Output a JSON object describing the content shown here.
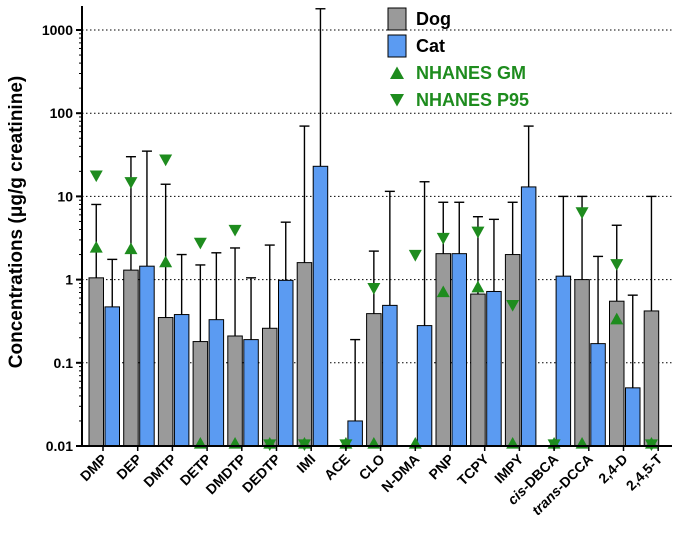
{
  "chart_data": {
    "type": "bar",
    "ylabel": "Concentrations (μg/g creatinine)",
    "yscale": "log",
    "ylim": [
      0.01,
      2000
    ],
    "yticks": [
      {
        "value": 0.01,
        "label": "0.01"
      },
      {
        "value": 0.1,
        "label": "0.1"
      },
      {
        "value": 1,
        "label": "1"
      },
      {
        "value": 10,
        "label": "10"
      },
      {
        "value": 100,
        "label": "100"
      },
      {
        "value": 1000,
        "label": "1000"
      }
    ],
    "grid": true,
    "legend_position": "top-center",
    "categories": [
      {
        "prefix": "",
        "text": "DMP",
        "italic": ""
      },
      {
        "prefix": "",
        "text": "DEP",
        "italic": ""
      },
      {
        "prefix": "",
        "text": "DMTP",
        "italic": ""
      },
      {
        "prefix": "",
        "text": "DETP",
        "italic": ""
      },
      {
        "prefix": "",
        "text": "DMDTP",
        "italic": ""
      },
      {
        "prefix": "",
        "text": "DEDTP",
        "italic": ""
      },
      {
        "prefix": "",
        "text": "IMI",
        "italic": ""
      },
      {
        "prefix": "",
        "text": "ACE",
        "italic": ""
      },
      {
        "prefix": "",
        "text": "CLO",
        "italic": ""
      },
      {
        "prefix": "",
        "text": "N-DMA",
        "italic": ""
      },
      {
        "prefix": "",
        "text": "PNP",
        "italic": ""
      },
      {
        "prefix": "",
        "text": "TCPY",
        "italic": ""
      },
      {
        "prefix": "",
        "text": "IMPY",
        "italic": ""
      },
      {
        "prefix": "cis",
        "text": "-DBCA",
        "italic": "cis"
      },
      {
        "prefix": "trans",
        "text": "-DCCA",
        "italic": "trans"
      },
      {
        "prefix": "",
        "text": "2,4-D",
        "italic": ""
      },
      {
        "prefix": "",
        "text": "2,4,5-T",
        "italic": ""
      }
    ],
    "series": [
      {
        "name": "Dog",
        "kind": "bar",
        "color": "#9a9a9a",
        "values": [
          1.05,
          1.3,
          0.35,
          0.18,
          0.21,
          0.26,
          1.6,
          null,
          0.39,
          null,
          2.05,
          0.67,
          2.0,
          null,
          1.0,
          0.55,
          0.42
        ],
        "error_upper": [
          8.0,
          30,
          14,
          1.5,
          2.4,
          2.6,
          70,
          null,
          2.2,
          null,
          8.5,
          5.7,
          8.5,
          null,
          10,
          4.5,
          10
        ]
      },
      {
        "name": "Cat",
        "kind": "bar",
        "color": "#5b9bf2",
        "values": [
          0.47,
          1.45,
          0.38,
          0.33,
          0.19,
          0.98,
          23,
          0.02,
          0.49,
          0.28,
          2.05,
          0.72,
          13,
          1.1,
          0.17,
          0.05,
          null
        ],
        "error_upper": [
          1.75,
          35,
          2.0,
          2.1,
          1.05,
          4.9,
          1800,
          0.19,
          11.5,
          15,
          8.5,
          5.3,
          70,
          10,
          1.9,
          0.65,
          null
        ]
      },
      {
        "name": "NHANES GM",
        "kind": "marker-up",
        "color": "#1e8c1e",
        "values": [
          2.4,
          2.3,
          1.6,
          0.01,
          0.01,
          0.01,
          0.01,
          0.01,
          0.01,
          0.01,
          0.7,
          0.8,
          0.01,
          0.01,
          0.01,
          0.33,
          0.01
        ]
      },
      {
        "name": "NHANES P95",
        "kind": "marker-down",
        "color": "#1e8c1e",
        "values": [
          18,
          15,
          28,
          2.8,
          4.0,
          0.01,
          0.01,
          0.01,
          0.8,
          2.0,
          3.2,
          3.8,
          0.5,
          0.01,
          6.5,
          1.55,
          0.01
        ]
      }
    ]
  }
}
